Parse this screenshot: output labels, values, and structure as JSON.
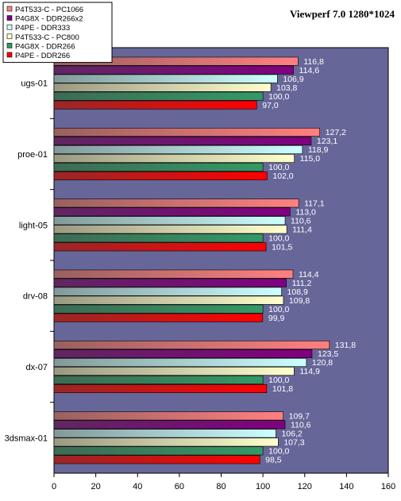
{
  "chart_data": {
    "type": "bar",
    "orientation": "horizontal",
    "title": "Viewperf 7.0 1280*1024",
    "xlabel": "",
    "ylabel": "",
    "xlim": [
      0,
      160
    ],
    "x_ticks": [
      "0",
      "20",
      "40",
      "60",
      "80",
      "100",
      "120",
      "140",
      "160"
    ],
    "grid": false,
    "legend_position": "top-left",
    "categories": [
      "ugs-01",
      "proe-01",
      "light-05",
      "drv-08",
      "dx-07",
      "3dsmax-01"
    ],
    "series": [
      {
        "name": "P4T533-C - PC1066",
        "color": "#ff8080",
        "values": [
          116.8,
          127.2,
          117.1,
          114.4,
          131.8,
          109.7
        ],
        "labels": [
          "116,8",
          "127,2",
          "117,1",
          "114,4",
          "131,8",
          "109,7"
        ]
      },
      {
        "name": "P4G8X - DDR266x2",
        "color": "#800080",
        "values": [
          114.6,
          123.1,
          113.0,
          111.2,
          123.5,
          110.6
        ],
        "labels": [
          "114,6",
          "123,1",
          "113,0",
          "111,2",
          "123,5",
          "110,6"
        ]
      },
      {
        "name": "P4PE - DDR333",
        "color": "#ccffff",
        "values": [
          106.9,
          118.9,
          110.6,
          108.9,
          120.8,
          106.2
        ],
        "labels": [
          "106,9",
          "118,9",
          "110,6",
          "108,9",
          "120,8",
          "106,2"
        ]
      },
      {
        "name": "P4T533-C - PC800",
        "color": "#ffffcc",
        "values": [
          103.8,
          115.0,
          111.4,
          109.8,
          114.9,
          107.3
        ],
        "labels": [
          "103,8",
          "115,0",
          "111,4",
          "109,8",
          "114,9",
          "107,3"
        ]
      },
      {
        "name": "P4G8X - DDR266",
        "color": "#339966",
        "values": [
          100.0,
          100.0,
          100.0,
          100.0,
          100.0,
          100.0
        ],
        "labels": [
          "100,0",
          "100,0",
          "100,0",
          "100,0",
          "100,0",
          "100,0"
        ]
      },
      {
        "name": "P4PE - DDR266",
        "color": "#ff0000",
        "values": [
          97.0,
          102.0,
          101.5,
          99.9,
          101.8,
          98.5
        ],
        "labels": [
          "97,0",
          "102,0",
          "101,5",
          "99,9",
          "101,8",
          "98,5"
        ]
      }
    ],
    "colors": {
      "plot_background": "#666699",
      "label_text": "#ffffff",
      "axis": "#000000"
    }
  }
}
